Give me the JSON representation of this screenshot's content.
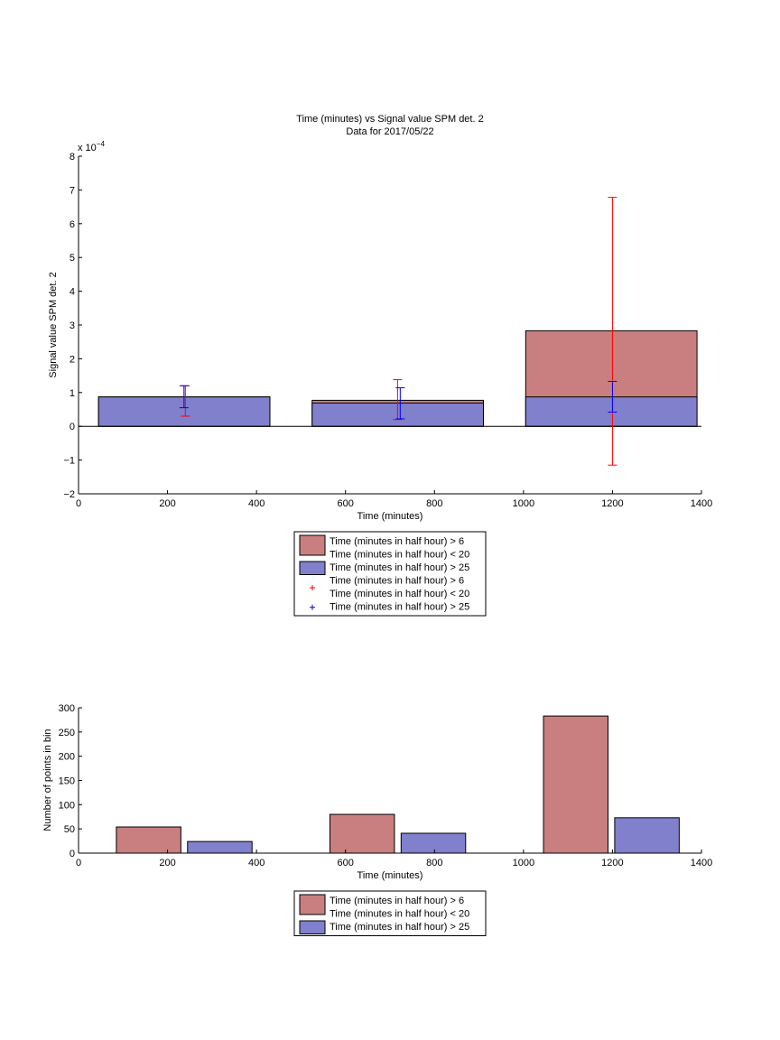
{
  "chart_data": [
    {
      "type": "bar",
      "title": "Time (minutes) vs Signal value SPM det. 2",
      "subtitle": "Data for 2017/05/22",
      "xlabel": "Time (minutes)",
      "ylabel": "Signal value SPM det. 2",
      "y_exponent_label": "x 10",
      "y_exponent_power": "−4",
      "xlim": [
        0,
        1400
      ],
      "ylim": [
        -2,
        8
      ],
      "x_ticks": [
        "0",
        "200",
        "400",
        "600",
        "800",
        "1000",
        "1200",
        "1400"
      ],
      "y_ticks": [
        "−2",
        "−1",
        "0",
        "1",
        "2",
        "3",
        "4",
        "5",
        "6",
        "7",
        "8"
      ],
      "categories": [
        240,
        720,
        1200
      ],
      "bar_span": [
        [
          45,
          430
        ],
        [
          525,
          910
        ],
        [
          1005,
          1390
        ]
      ],
      "series": [
        {
          "values": [
            0.87,
            0.77,
            2.83
          ],
          "color": "#c97f7f",
          "errorbars": [
            [
              0.3,
              1.2
            ],
            [
              0.2,
              1.38
            ],
            [
              -1.15,
              6.78
            ]
          ],
          "errorbar_color": "#ff0000",
          "errorbar_x": [
            240,
            717,
            1200
          ]
        },
        {
          "values": [
            0.87,
            0.69,
            0.87
          ],
          "color": "#8080cc",
          "errorbars": [
            [
              0.55,
              1.2
            ],
            [
              0.22,
              1.14
            ],
            [
              0.42,
              1.33
            ]
          ],
          "errorbar_color": "#0000ff",
          "errorbar_x": [
            237,
            723,
            1200
          ]
        }
      ],
      "legend": {
        "placement": "below",
        "entries": [
          {
            "kind": "patch",
            "color": "#c97f7f",
            "lines": [
              "Time (minutes in half hour) > 6",
              "Time (minutes in half hour) < 20"
            ]
          },
          {
            "kind": "patch",
            "color": "#8080cc",
            "lines": [
              "Time (minutes in half hour) > 25"
            ]
          },
          {
            "kind": "marker",
            "color": "#ff0000",
            "lines": [
              "Time (minutes in half hour) > 6",
              "Time (minutes in half hour) < 20"
            ]
          },
          {
            "kind": "marker",
            "color": "#0000ff",
            "lines": [
              "Time (minutes in half hour) > 25"
            ]
          }
        ]
      }
    },
    {
      "type": "bar",
      "xlabel": "Time (minutes)",
      "ylabel": "Number of points in bin",
      "xlim": [
        0,
        1400
      ],
      "ylim": [
        0,
        300
      ],
      "x_ticks": [
        "0",
        "200",
        "400",
        "600",
        "800",
        "1000",
        "1200",
        "1400"
      ],
      "y_ticks": [
        "0",
        "50",
        "100",
        "150",
        "200",
        "250",
        "300"
      ],
      "series": [
        {
          "color": "#c97f7f",
          "bar_span": [
            [
              85,
              230
            ],
            [
              565,
              710
            ],
            [
              1045,
              1190
            ]
          ],
          "values": [
            54,
            80,
            283
          ]
        },
        {
          "color": "#8080cc",
          "bar_span": [
            [
              245,
              390
            ],
            [
              725,
              870
            ],
            [
              1205,
              1350
            ]
          ],
          "values": [
            24,
            41,
            73
          ]
        }
      ],
      "legend": {
        "placement": "below",
        "entries": [
          {
            "kind": "patch",
            "color": "#c97f7f",
            "lines": [
              "Time (minutes in half hour) > 6",
              "Time (minutes in half hour) < 20"
            ]
          },
          {
            "kind": "patch",
            "color": "#8080cc",
            "lines": [
              "Time (minutes in half hour) > 25"
            ]
          }
        ]
      }
    }
  ]
}
